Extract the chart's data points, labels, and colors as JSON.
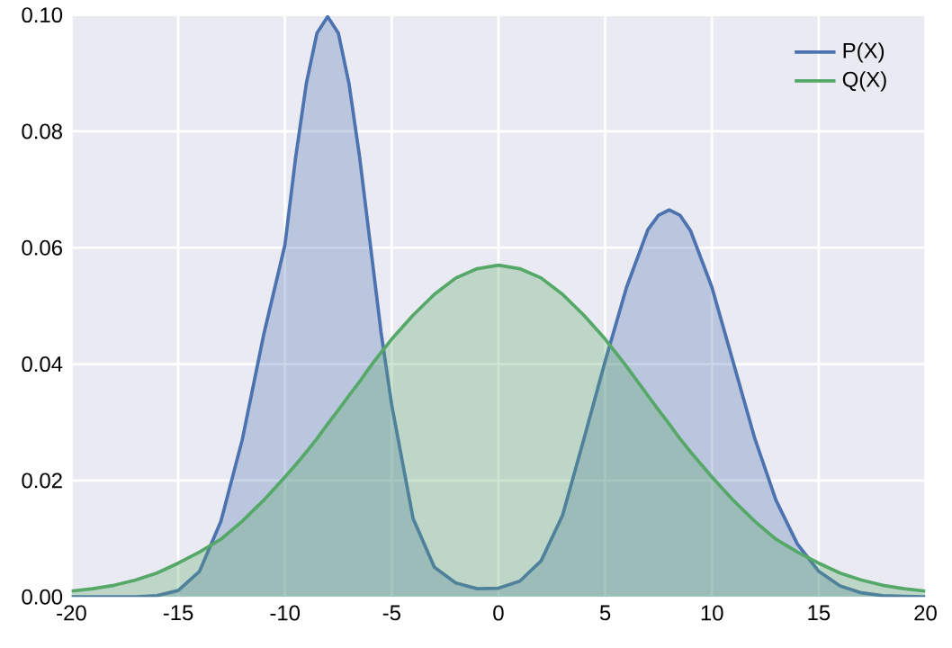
{
  "chart_data": {
    "type": "area",
    "x": [
      -20,
      -19,
      -18,
      -17,
      -16,
      -15,
      -14,
      -13,
      -12,
      -11,
      -10,
      -9.5,
      -9,
      -8.5,
      -8,
      -7.5,
      -7,
      -6.5,
      -6,
      -5.5,
      -5,
      -4,
      -3,
      -2,
      -1,
      0,
      1,
      2,
      3,
      4,
      5,
      6,
      7,
      7.5,
      8,
      8.5,
      9,
      10,
      11,
      12,
      13,
      14,
      15,
      16,
      17,
      18,
      19,
      20
    ],
    "series": [
      {
        "name": "P(X)",
        "color": "#4c72b0",
        "values": [
          0.0,
          0.0,
          0.0,
          0.0,
          0.0002,
          0.0011,
          0.0044,
          0.013,
          0.027,
          0.045,
          0.0605,
          0.0755,
          0.0882,
          0.0969,
          0.0997,
          0.0969,
          0.0882,
          0.0755,
          0.0605,
          0.0455,
          0.033,
          0.0135,
          0.0051,
          0.0024,
          0.0014,
          0.0015,
          0.0027,
          0.0062,
          0.014,
          0.0271,
          0.0405,
          0.0532,
          0.0631,
          0.0656,
          0.0665,
          0.0656,
          0.0629,
          0.0532,
          0.0403,
          0.0273,
          0.0166,
          0.0091,
          0.0044,
          0.0019,
          0.0007,
          0.0002,
          0.0001,
          0.0
        ]
      },
      {
        "name": "Q(X)",
        "color": "#55a868",
        "values": [
          0.001,
          0.0014,
          0.002,
          0.0029,
          0.0041,
          0.0058,
          0.0077,
          0.0099,
          0.013,
          0.0166,
          0.0206,
          0.0227,
          0.0249,
          0.0272,
          0.0297,
          0.0321,
          0.0346,
          0.037,
          0.0396,
          0.042,
          0.0443,
          0.0484,
          0.052,
          0.0548,
          0.0564,
          0.057,
          0.0564,
          0.0548,
          0.052,
          0.0484,
          0.0443,
          0.0396,
          0.0346,
          0.0321,
          0.0297,
          0.0272,
          0.0249,
          0.0206,
          0.0166,
          0.013,
          0.0099,
          0.0077,
          0.0058,
          0.0041,
          0.0029,
          0.002,
          0.0014,
          0.001
        ]
      }
    ],
    "xlim": [
      -20,
      20
    ],
    "ylim": [
      0,
      0.1
    ],
    "xticks": [
      -20,
      -15,
      -10,
      -5,
      0,
      5,
      10,
      15,
      20
    ],
    "yticks": [
      {
        "value": 0,
        "label": "0.00"
      },
      {
        "value": 0.02,
        "label": "0.02"
      },
      {
        "value": 0.04,
        "label": "0.04"
      },
      {
        "value": 0.06,
        "label": "0.06"
      },
      {
        "value": 0.08,
        "label": "0.08"
      },
      {
        "value": 0.1,
        "label": "0.10"
      }
    ],
    "grid": true,
    "legend": "top right"
  }
}
